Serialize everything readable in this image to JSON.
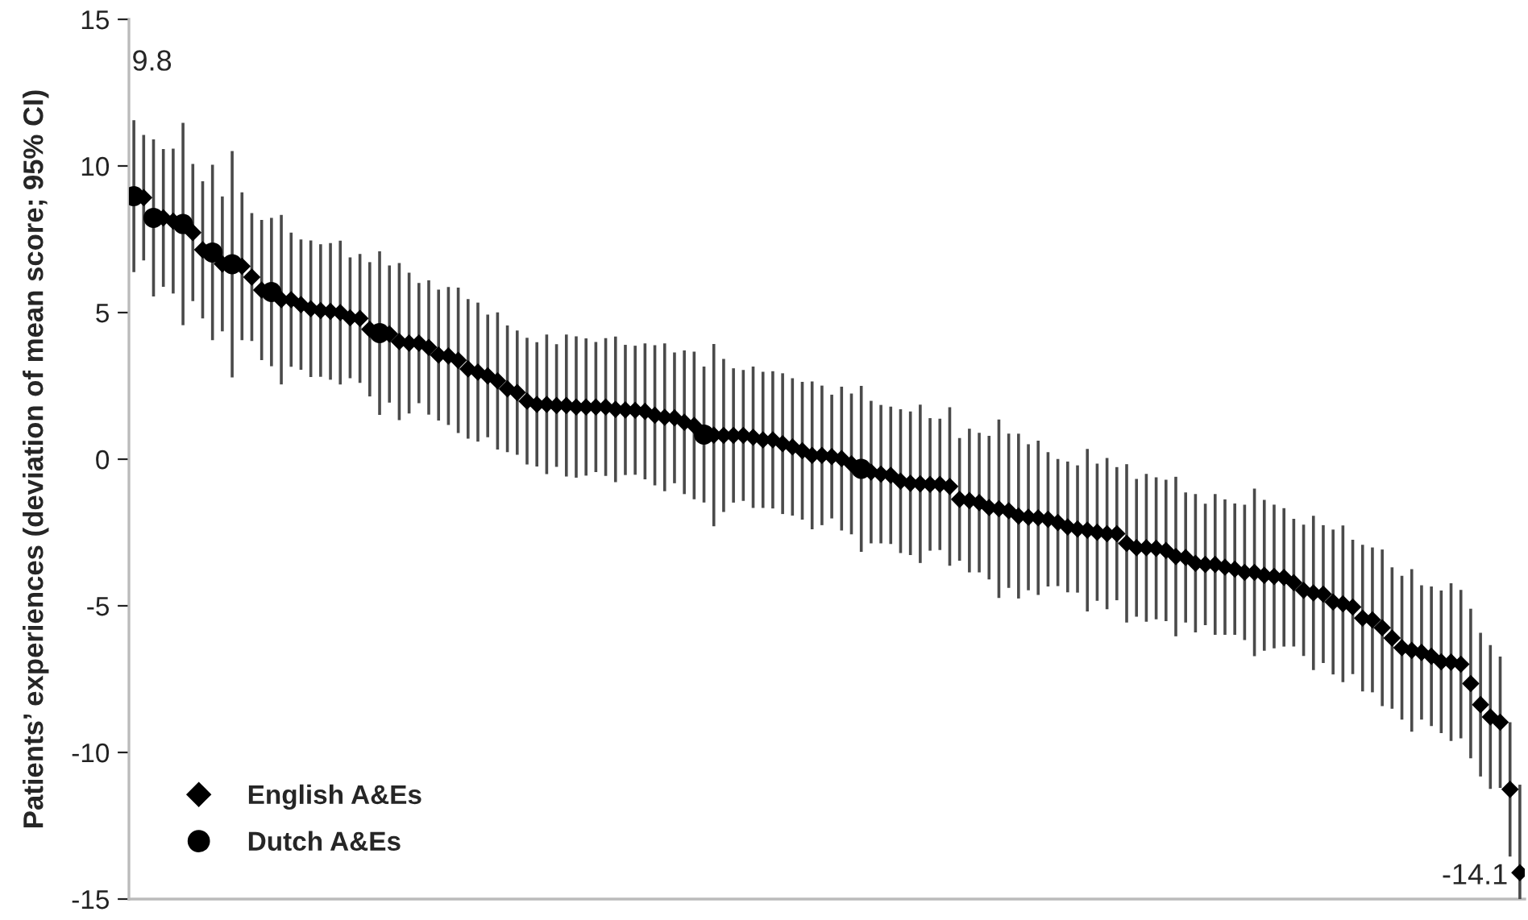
{
  "chart_data": {
    "type": "scatter",
    "ylabel": "Patients’ experiences (deviation of mean score; 95% CI)",
    "annotations": [
      "9.8",
      "-14.1"
    ],
    "categories": [
      null,
      null,
      null,
      null,
      null,
      null,
      null,
      null,
      null,
      null,
      null,
      null,
      null,
      null,
      null,
      null,
      null,
      null,
      null,
      null,
      null,
      null,
      null,
      null,
      null,
      null,
      null,
      null,
      null,
      null,
      null,
      null,
      null,
      null,
      null,
      null,
      null,
      null,
      null,
      null,
      null,
      null,
      null,
      null,
      null,
      null,
      null,
      null,
      null,
      null,
      null,
      null,
      null,
      null,
      null,
      null,
      null,
      null,
      null,
      null,
      null,
      null,
      null,
      null,
      null,
      null,
      null,
      null,
      null,
      null,
      null,
      null,
      null,
      null,
      null,
      null,
      null,
      null,
      null,
      null,
      null,
      null,
      null,
      null,
      null,
      null,
      null,
      null,
      null,
      null,
      null,
      null,
      null,
      null,
      null,
      null,
      null,
      null,
      null,
      null,
      null,
      null,
      null,
      null,
      null,
      null,
      null,
      null,
      null,
      null,
      null,
      null,
      null,
      null,
      null,
      null,
      null,
      null,
      null,
      null,
      null,
      null,
      null,
      null,
      null,
      null,
      null,
      null,
      null,
      null,
      null,
      null,
      null,
      null,
      null,
      null,
      null,
      null,
      null,
      null,
      null,
      null
    ],
    "series": [
      {
        "name": "English A&Es",
        "color": "#000000",
        "marker": "diamond",
        "values": [
          null,
          8.92,
          null,
          8.23,
          8.12,
          null,
          7.73,
          7.14,
          null,
          6.66,
          null,
          6.58,
          6.21,
          5.77,
          null,
          5.44,
          5.44,
          5.27,
          5.13,
          5.07,
          5.04,
          5.0,
          4.82,
          4.8,
          4.43,
          null,
          4.27,
          4.01,
          3.96,
          3.96,
          3.81,
          3.55,
          3.52,
          3.37,
          3.08,
          2.97,
          2.84,
          2.67,
          2.4,
          2.27,
          1.98,
          1.87,
          1.87,
          1.83,
          1.83,
          1.78,
          1.78,
          1.78,
          1.78,
          1.7,
          1.68,
          1.67,
          1.63,
          1.5,
          1.43,
          1.41,
          1.26,
          1.15,
          null,
          0.82,
          0.81,
          0.81,
          0.81,
          0.75,
          0.66,
          0.66,
          0.53,
          0.42,
          0.29,
          0.13,
          0.13,
          0.09,
          0.02,
          -0.16,
          null,
          -0.44,
          -0.51,
          -0.55,
          -0.75,
          -0.82,
          -0.84,
          -0.86,
          -0.86,
          -0.93,
          -1.37,
          -1.41,
          -1.48,
          -1.65,
          -1.69,
          -1.76,
          -1.94,
          -1.98,
          -2.0,
          -2.05,
          -2.16,
          -2.31,
          -2.38,
          -2.42,
          -2.49,
          -2.54,
          -2.54,
          -2.87,
          -3.02,
          -3.02,
          -3.04,
          -3.11,
          -3.32,
          -3.35,
          -3.55,
          -3.59,
          -3.59,
          -3.68,
          -3.75,
          -3.86,
          -3.86,
          -3.96,
          -4.0,
          -4.03,
          -4.21,
          -4.47,
          -4.56,
          -4.6,
          -4.87,
          -4.93,
          -5.04,
          -5.42,
          -5.48,
          -5.75,
          -6.1,
          -6.43,
          -6.52,
          -6.59,
          -6.72,
          -6.91,
          -6.92,
          -6.99,
          -7.65,
          -8.37,
          -8.79,
          -8.97,
          -11.26,
          -14.1
        ],
        "errors": [
          null,
          2.14,
          null,
          2.35,
          2.47,
          null,
          2.34,
          2.34,
          null,
          2.3,
          null,
          2.52,
          2.18,
          2.39,
          null,
          2.89,
          2.29,
          2.22,
          2.33,
          2.26,
          2.33,
          2.45,
          2.06,
          2.2,
          2.29,
          null,
          2.34,
          2.68,
          2.4,
          2.05,
          2.29,
          2.23,
          2.35,
          2.48,
          2.38,
          2.37,
          2.09,
          2.34,
          2.16,
          2.12,
          2.16,
          2.12,
          2.38,
          2.09,
          2.42,
          2.41,
          2.34,
          2.22,
          2.35,
          2.48,
          2.22,
          2.2,
          2.32,
          2.39,
          2.52,
          2.23,
          2.45,
          2.52,
          null,
          3.11,
          2.61,
          2.29,
          2.23,
          2.41,
          2.32,
          2.34,
          2.4,
          2.34,
          2.35,
          2.52,
          2.38,
          2.11,
          2.45,
          2.4,
          null,
          2.43,
          2.36,
          2.34,
          2.45,
          2.45,
          2.7,
          2.26,
          2.24,
          2.7,
          2.09,
          2.45,
          2.38,
          2.45,
          3.04,
          2.63,
          2.81,
          2.49,
          2.63,
          2.29,
          2.17,
          2.23,
          2.17,
          2.77,
          2.34,
          2.58,
          2.27,
          2.7,
          2.35,
          2.52,
          2.42,
          2.41,
          2.72,
          2.22,
          2.36,
          2.07,
          2.4,
          2.31,
          2.24,
          2.31,
          2.86,
          2.57,
          2.45,
          2.36,
          2.18,
          2.24,
          2.63,
          2.35,
          2.47,
          2.67,
          2.29,
          2.5,
          2.47,
          2.67,
          2.41,
          2.45,
          2.77,
          2.29,
          2.38,
          2.43,
          2.69,
          2.53,
          2.55,
          2.45,
          2.45,
          2.24,
          2.29,
          [
            -15,
            -11.1
          ]
        ]
      },
      {
        "name": "Dutch A&Es",
        "color": "#000000",
        "marker": "circle",
        "values": [
          8.97,
          null,
          8.23,
          null,
          null,
          8.02,
          null,
          null,
          7.05,
          null,
          6.65,
          null,
          null,
          null,
          5.7,
          null,
          null,
          null,
          null,
          null,
          null,
          null,
          null,
          null,
          null,
          4.3,
          null,
          null,
          null,
          null,
          null,
          null,
          null,
          null,
          null,
          null,
          null,
          null,
          null,
          null,
          null,
          null,
          null,
          null,
          null,
          null,
          null,
          null,
          null,
          null,
          null,
          null,
          null,
          null,
          null,
          null,
          null,
          null,
          0.84,
          null,
          null,
          null,
          null,
          null,
          null,
          null,
          null,
          null,
          null,
          null,
          null,
          null,
          null,
          null,
          -0.33,
          null,
          null,
          null,
          null,
          null,
          null,
          null,
          null,
          null,
          null,
          null,
          null,
          null,
          null,
          null,
          null,
          null,
          null,
          null,
          null,
          null,
          null,
          null,
          null,
          null,
          null,
          null,
          null,
          null,
          null,
          null,
          null,
          null,
          null,
          null,
          null,
          null,
          null,
          null,
          null,
          null,
          null,
          null,
          null,
          null,
          null,
          null,
          null,
          null,
          null,
          null,
          null,
          null,
          null,
          null,
          null,
          null,
          null,
          null,
          null,
          null,
          null,
          null,
          null,
          null,
          null,
          null
        ],
        "errors": [
          2.59,
          null,
          2.68,
          null,
          null,
          3.45,
          null,
          null,
          2.99,
          null,
          3.86,
          null,
          null,
          null,
          2.53,
          null,
          null,
          null,
          null,
          null,
          null,
          null,
          null,
          null,
          null,
          2.79,
          null,
          null,
          null,
          null,
          null,
          null,
          null,
          null,
          null,
          null,
          null,
          null,
          null,
          null,
          null,
          null,
          null,
          null,
          null,
          null,
          null,
          null,
          null,
          null,
          null,
          null,
          null,
          null,
          null,
          null,
          null,
          null,
          2.32,
          null,
          null,
          null,
          null,
          null,
          null,
          null,
          null,
          null,
          null,
          null,
          null,
          null,
          null,
          null,
          2.83,
          null,
          null,
          null,
          null,
          null,
          null,
          null,
          null,
          null,
          null,
          null,
          null,
          null,
          null,
          null,
          null,
          null,
          null,
          null,
          null,
          null,
          null,
          null,
          null,
          null,
          null,
          null,
          null,
          null,
          null,
          null,
          null,
          null,
          null,
          null,
          null,
          null,
          null,
          null,
          null,
          null,
          null,
          null,
          null,
          null,
          null,
          null,
          null,
          null,
          null,
          null,
          null,
          null,
          null,
          null,
          null,
          null,
          null,
          null,
          null,
          null,
          null,
          null,
          null,
          null,
          null,
          null
        ]
      }
    ],
    "ylim": [
      -15,
      15
    ],
    "yticks": [
      -15,
      -10,
      -5,
      0,
      5,
      10,
      15
    ],
    "grid": false,
    "legend": "bottom left",
    "tick_labels": "y"
  }
}
